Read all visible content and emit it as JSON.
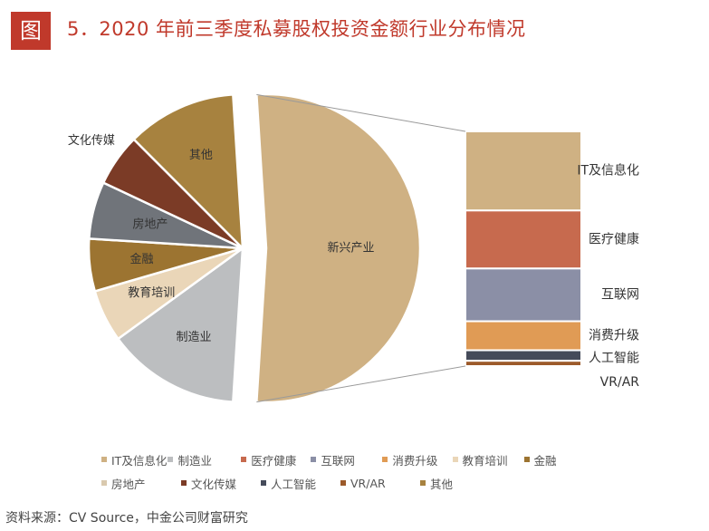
{
  "header": {
    "badge": "图",
    "title": "5．2020 年前三季度私募股权投资金额行业分布情况"
  },
  "chart_data": {
    "type": "pie",
    "title": "5．2020 年前三季度私募股权投资金额行业分布情况",
    "slices": [
      {
        "name": "新兴产业",
        "value": 52.0,
        "color": "#cfb183"
      },
      {
        "name": "制造业",
        "value": 14.0,
        "color": "#bcbec0"
      },
      {
        "name": "教育培训",
        "value": 5.5,
        "color": "#ead6b8"
      },
      {
        "name": "金融",
        "value": 5.5,
        "color": "#9c7431"
      },
      {
        "name": "房地产",
        "value": 6.0,
        "color": "#70747a"
      },
      {
        "name": "文化传媒",
        "value": 5.5,
        "color": "#7b3b26"
      },
      {
        "name": "其他",
        "value": 11.5,
        "color": "#a7823f"
      }
    ],
    "breakdown": {
      "of": "新兴产业",
      "type": "stacked-bar",
      "items": [
        {
          "name": "IT及信息化",
          "value": 30,
          "color": "#cfb183"
        },
        {
          "name": "医疗健康",
          "value": 22,
          "color": "#c76a4e"
        },
        {
          "name": "互联网",
          "value": 20,
          "color": "#8b8fa6"
        },
        {
          "name": "消费升级",
          "value": 11,
          "color": "#e09b55"
        },
        {
          "name": "人工智能",
          "value": 4,
          "color": "#454b5a"
        },
        {
          "name": "VR/AR",
          "value": 2,
          "color": "#9c5a2a"
        }
      ]
    },
    "legend": {
      "position": "bottom",
      "items": [
        "IT及信息化",
        "制造业",
        "医疗健康",
        "互联网",
        "消费升级",
        "教育培训",
        "金融",
        "房地产",
        "文化传媒",
        "人工智能",
        "VR/AR",
        "其他"
      ],
      "colors": [
        "#cfb183",
        "#bcbec0",
        "#c76a4e",
        "#8b8fa6",
        "#e09b55",
        "#ead6b8",
        "#9c7431",
        "#d9c9ae",
        "#7b3b26",
        "#454b5a",
        "#9c5a2a",
        "#a7823f"
      ]
    }
  },
  "source": "资料来源：CV Source，中金公司财富研究"
}
